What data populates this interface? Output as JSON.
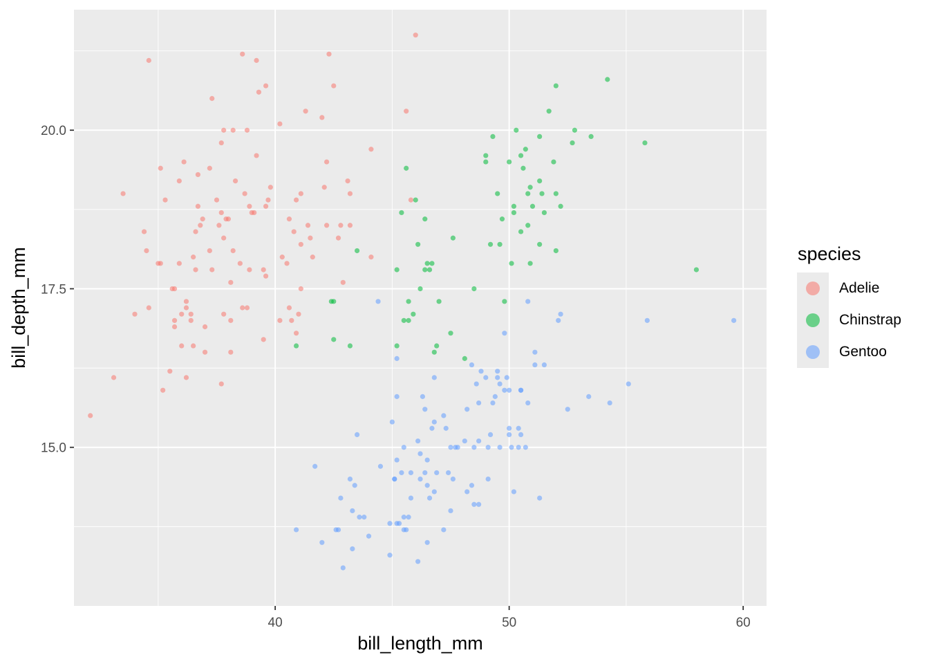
{
  "chart_data": {
    "type": "scatter",
    "title": "",
    "xlabel": "bill_length_mm",
    "ylabel": "bill_depth_mm",
    "xlim": [
      31.4,
      61.0
    ],
    "ylim": [
      12.5,
      21.9
    ],
    "x_ticks": [
      40,
      50,
      60
    ],
    "x_tick_labels": [
      "40",
      "50",
      "60"
    ],
    "y_ticks": [
      15.0,
      17.5,
      20.0
    ],
    "y_tick_labels": [
      "15.0",
      "17.5",
      "20.0"
    ],
    "grid": true,
    "legend": {
      "title": "species",
      "position": "right"
    },
    "series": [
      {
        "name": "Adelie",
        "color": "#F8766D",
        "points": [
          [
            32.1,
            15.5
          ],
          [
            33.1,
            16.1
          ],
          [
            33.5,
            19.0
          ],
          [
            34.0,
            17.1
          ],
          [
            34.4,
            18.4
          ],
          [
            34.5,
            18.1
          ],
          [
            34.6,
            21.1
          ],
          [
            34.6,
            17.2
          ],
          [
            35.0,
            17.9
          ],
          [
            35.1,
            17.9
          ],
          [
            35.1,
            19.4
          ],
          [
            35.2,
            15.9
          ],
          [
            35.3,
            18.9
          ],
          [
            35.5,
            16.2
          ],
          [
            35.6,
            17.5
          ],
          [
            35.7,
            17.5
          ],
          [
            35.7,
            16.9
          ],
          [
            35.7,
            17.0
          ],
          [
            35.9,
            17.9
          ],
          [
            35.9,
            19.2
          ],
          [
            36.0,
            16.6
          ],
          [
            36.0,
            17.1
          ],
          [
            36.1,
            19.5
          ],
          [
            36.2,
            17.3
          ],
          [
            36.2,
            17.2
          ],
          [
            36.2,
            16.1
          ],
          [
            36.4,
            17.1
          ],
          [
            36.4,
            17.0
          ],
          [
            36.5,
            16.6
          ],
          [
            36.5,
            18.0
          ],
          [
            36.6,
            18.4
          ],
          [
            36.6,
            17.8
          ],
          [
            36.7,
            18.8
          ],
          [
            36.7,
            19.3
          ],
          [
            36.8,
            18.5
          ],
          [
            36.9,
            18.6
          ],
          [
            37.0,
            16.9
          ],
          [
            37.0,
            16.5
          ],
          [
            37.2,
            18.1
          ],
          [
            37.2,
            19.4
          ],
          [
            37.3,
            20.5
          ],
          [
            37.3,
            17.8
          ],
          [
            37.5,
            18.9
          ],
          [
            37.6,
            18.5
          ],
          [
            37.7,
            18.7
          ],
          [
            37.7,
            16.0
          ],
          [
            37.7,
            19.8
          ],
          [
            37.8,
            17.1
          ],
          [
            37.8,
            18.3
          ],
          [
            37.8,
            20.0
          ],
          [
            37.9,
            18.6
          ],
          [
            38.0,
            18.6
          ],
          [
            38.1,
            17.6
          ],
          [
            38.1,
            16.5
          ],
          [
            38.1,
            17.0
          ],
          [
            38.2,
            18.1
          ],
          [
            38.2,
            20.0
          ],
          [
            38.3,
            19.2
          ],
          [
            38.5,
            17.9
          ],
          [
            38.6,
            21.2
          ],
          [
            38.6,
            17.2
          ],
          [
            38.7,
            19.0
          ],
          [
            38.8,
            17.2
          ],
          [
            38.8,
            20.0
          ],
          [
            38.9,
            18.8
          ],
          [
            38.9,
            17.8
          ],
          [
            39.0,
            18.7
          ],
          [
            39.1,
            18.7
          ],
          [
            39.2,
            21.1
          ],
          [
            39.2,
            19.6
          ],
          [
            39.3,
            20.6
          ],
          [
            39.5,
            16.7
          ],
          [
            39.5,
            17.8
          ],
          [
            39.6,
            18.8
          ],
          [
            39.6,
            17.7
          ],
          [
            39.6,
            20.7
          ],
          [
            39.7,
            18.9
          ],
          [
            39.8,
            19.1
          ],
          [
            40.2,
            17.0
          ],
          [
            40.2,
            20.1
          ],
          [
            40.3,
            18.0
          ],
          [
            40.5,
            17.9
          ],
          [
            40.6,
            18.6
          ],
          [
            40.6,
            17.2
          ],
          [
            40.7,
            17.0
          ],
          [
            40.8,
            18.4
          ],
          [
            40.9,
            18.9
          ],
          [
            40.9,
            16.8
          ],
          [
            41.0,
            17.1
          ],
          [
            41.1,
            19.0
          ],
          [
            41.1,
            18.2
          ],
          [
            41.1,
            17.5
          ],
          [
            41.3,
            20.3
          ],
          [
            41.4,
            18.5
          ],
          [
            41.5,
            18.3
          ],
          [
            41.6,
            18.0
          ],
          [
            42.0,
            20.2
          ],
          [
            42.1,
            19.1
          ],
          [
            42.2,
            18.5
          ],
          [
            42.2,
            19.5
          ],
          [
            42.3,
            21.2
          ],
          [
            42.5,
            20.7
          ],
          [
            42.7,
            18.3
          ],
          [
            42.8,
            18.5
          ],
          [
            42.9,
            17.6
          ],
          [
            43.1,
            19.2
          ],
          [
            43.2,
            18.5
          ],
          [
            43.2,
            19.0
          ],
          [
            44.1,
            19.7
          ],
          [
            44.1,
            18.0
          ],
          [
            45.6,
            20.3
          ],
          [
            45.8,
            18.9
          ],
          [
            46.0,
            21.5
          ]
        ]
      },
      {
        "name": "Chinstrap",
        "color": "#00BA38",
        "points": [
          [
            40.9,
            16.6
          ],
          [
            42.4,
            17.3
          ],
          [
            42.5,
            17.3
          ],
          [
            42.5,
            16.7
          ],
          [
            43.2,
            16.6
          ],
          [
            43.5,
            18.1
          ],
          [
            45.2,
            17.8
          ],
          [
            45.2,
            16.6
          ],
          [
            45.4,
            18.7
          ],
          [
            45.5,
            17.0
          ],
          [
            45.6,
            19.4
          ],
          [
            45.7,
            17.3
          ],
          [
            45.7,
            17.0
          ],
          [
            45.9,
            17.1
          ],
          [
            46.0,
            18.9
          ],
          [
            46.1,
            18.2
          ],
          [
            46.2,
            17.5
          ],
          [
            46.4,
            18.6
          ],
          [
            46.4,
            17.8
          ],
          [
            46.5,
            17.9
          ],
          [
            46.6,
            17.8
          ],
          [
            46.7,
            17.9
          ],
          [
            46.8,
            16.5
          ],
          [
            46.9,
            16.6
          ],
          [
            47.0,
            17.3
          ],
          [
            47.5,
            16.8
          ],
          [
            47.6,
            18.3
          ],
          [
            48.1,
            16.4
          ],
          [
            48.5,
            17.5
          ],
          [
            49.0,
            19.5
          ],
          [
            49.0,
            19.6
          ],
          [
            49.2,
            18.2
          ],
          [
            49.3,
            19.9
          ],
          [
            49.5,
            19.0
          ],
          [
            49.6,
            18.2
          ],
          [
            49.7,
            18.6
          ],
          [
            49.8,
            17.3
          ],
          [
            50.0,
            19.5
          ],
          [
            50.1,
            17.9
          ],
          [
            50.2,
            18.7
          ],
          [
            50.2,
            18.8
          ],
          [
            50.3,
            20.0
          ],
          [
            50.5,
            19.6
          ],
          [
            50.5,
            18.4
          ],
          [
            50.6,
            19.4
          ],
          [
            50.7,
            19.7
          ],
          [
            50.8,
            18.5
          ],
          [
            50.8,
            19.0
          ],
          [
            50.9,
            17.9
          ],
          [
            50.9,
            19.1
          ],
          [
            51.0,
            18.8
          ],
          [
            51.3,
            19.2
          ],
          [
            51.3,
            19.9
          ],
          [
            51.3,
            18.2
          ],
          [
            51.4,
            19.0
          ],
          [
            51.5,
            18.7
          ],
          [
            51.7,
            20.3
          ],
          [
            51.9,
            19.5
          ],
          [
            52.0,
            18.1
          ],
          [
            52.0,
            19.0
          ],
          [
            52.0,
            20.7
          ],
          [
            52.2,
            18.8
          ],
          [
            52.7,
            19.8
          ],
          [
            52.8,
            20.0
          ],
          [
            53.5,
            19.9
          ],
          [
            54.2,
            20.8
          ],
          [
            55.8,
            19.8
          ],
          [
            58.0,
            17.8
          ]
        ]
      },
      {
        "name": "Gentoo",
        "color": "#619CFF",
        "points": [
          [
            40.9,
            13.7
          ],
          [
            41.7,
            14.7
          ],
          [
            42.0,
            13.5
          ],
          [
            42.6,
            13.7
          ],
          [
            42.7,
            13.7
          ],
          [
            42.8,
            14.2
          ],
          [
            42.9,
            13.1
          ],
          [
            43.2,
            14.5
          ],
          [
            43.3,
            13.4
          ],
          [
            43.3,
            14.0
          ],
          [
            43.4,
            14.4
          ],
          [
            43.5,
            15.2
          ],
          [
            43.6,
            13.9
          ],
          [
            43.8,
            13.9
          ],
          [
            44.0,
            13.6
          ],
          [
            44.4,
            17.3
          ],
          [
            44.5,
            14.7
          ],
          [
            44.9,
            13.3
          ],
          [
            44.9,
            13.8
          ],
          [
            45.0,
            15.4
          ],
          [
            45.1,
            14.5
          ],
          [
            45.1,
            14.5
          ],
          [
            45.2,
            13.8
          ],
          [
            45.2,
            14.8
          ],
          [
            45.2,
            16.4
          ],
          [
            45.2,
            15.8
          ],
          [
            45.3,
            13.8
          ],
          [
            45.4,
            14.6
          ],
          [
            45.5,
            13.7
          ],
          [
            45.5,
            13.9
          ],
          [
            45.5,
            15.0
          ],
          [
            45.6,
            13.7
          ],
          [
            45.7,
            13.9
          ],
          [
            45.8,
            14.6
          ],
          [
            45.8,
            14.2
          ],
          [
            46.1,
            13.2
          ],
          [
            46.1,
            15.1
          ],
          [
            46.2,
            14.5
          ],
          [
            46.2,
            14.9
          ],
          [
            46.3,
            15.8
          ],
          [
            46.4,
            14.6
          ],
          [
            46.4,
            15.6
          ],
          [
            46.5,
            13.5
          ],
          [
            46.5,
            14.4
          ],
          [
            46.5,
            14.8
          ],
          [
            46.6,
            14.2
          ],
          [
            46.7,
            15.3
          ],
          [
            46.8,
            15.4
          ],
          [
            46.8,
            14.3
          ],
          [
            46.8,
            16.1
          ],
          [
            46.9,
            14.6
          ],
          [
            47.2,
            13.7
          ],
          [
            47.2,
            15.5
          ],
          [
            47.3,
            15.3
          ],
          [
            47.4,
            14.6
          ],
          [
            47.5,
            14.0
          ],
          [
            47.5,
            15.0
          ],
          [
            47.6,
            14.5
          ],
          [
            47.7,
            15.0
          ],
          [
            47.8,
            15.0
          ],
          [
            48.1,
            15.1
          ],
          [
            48.2,
            14.3
          ],
          [
            48.2,
            15.6
          ],
          [
            48.4,
            14.4
          ],
          [
            48.4,
            16.3
          ],
          [
            48.5,
            14.1
          ],
          [
            48.5,
            15.0
          ],
          [
            48.6,
            16.0
          ],
          [
            48.7,
            14.1
          ],
          [
            48.7,
            15.1
          ],
          [
            48.7,
            15.7
          ],
          [
            48.8,
            16.2
          ],
          [
            49.0,
            16.1
          ],
          [
            49.1,
            14.5
          ],
          [
            49.1,
            15.0
          ],
          [
            49.2,
            15.2
          ],
          [
            49.3,
            15.7
          ],
          [
            49.4,
            15.8
          ],
          [
            49.5,
            16.1
          ],
          [
            49.5,
            16.2
          ],
          [
            49.6,
            15.0
          ],
          [
            49.6,
            16.0
          ],
          [
            49.8,
            15.9
          ],
          [
            49.8,
            16.8
          ],
          [
            49.9,
            16.1
          ],
          [
            50.0,
            15.2
          ],
          [
            50.0,
            15.3
          ],
          [
            50.0,
            15.9
          ],
          [
            50.1,
            15.0
          ],
          [
            50.2,
            14.3
          ],
          [
            50.4,
            15.0
          ],
          [
            50.4,
            15.3
          ],
          [
            50.5,
            15.2
          ],
          [
            50.5,
            15.9
          ],
          [
            50.5,
            15.9
          ],
          [
            50.7,
            15.0
          ],
          [
            50.8,
            15.7
          ],
          [
            50.8,
            17.3
          ],
          [
            51.1,
            16.3
          ],
          [
            51.1,
            16.5
          ],
          [
            51.3,
            14.2
          ],
          [
            51.5,
            16.3
          ],
          [
            52.1,
            17.0
          ],
          [
            52.2,
            17.1
          ],
          [
            52.5,
            15.6
          ],
          [
            53.4,
            15.8
          ],
          [
            54.3,
            15.7
          ],
          [
            55.1,
            16.0
          ],
          [
            55.9,
            17.0
          ],
          [
            59.6,
            17.0
          ]
        ]
      }
    ]
  }
}
